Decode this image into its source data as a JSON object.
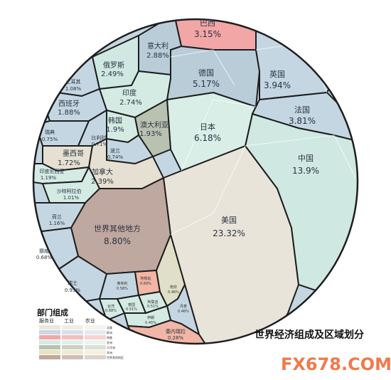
{
  "chart_data": {
    "type": "voronoi-treemap",
    "title": "世界经济组成及区域划分",
    "regions": [
      {
        "name": "美国",
        "value": "23.32%",
        "share": 23.32,
        "color": "#e9e4da"
      },
      {
        "name": "中国",
        "value": "13.9%",
        "share": 13.9,
        "color": "#cfe8e2"
      },
      {
        "name": "世界其他地方",
        "value": "8.80%",
        "share": 8.8,
        "color": "#bfa8a0"
      },
      {
        "name": "日本",
        "value": "6.18%",
        "share": 6.18,
        "color": "#d8eee7"
      },
      {
        "name": "德国",
        "value": "5.17%",
        "share": 5.17,
        "color": "#b9cdd9"
      },
      {
        "name": "英国",
        "value": "3.94%",
        "share": 3.94,
        "color": "#c4d6e2"
      },
      {
        "name": "法国",
        "value": "3.81%",
        "share": 3.81,
        "color": "#c4d6e2"
      },
      {
        "name": "巴西",
        "value": "3.15%",
        "share": 3.15,
        "color": "#f2a6a6"
      },
      {
        "name": "意大利",
        "value": "2.88%",
        "share": 2.88,
        "color": "#b9cdd9"
      },
      {
        "name": "印度",
        "value": "2.74%",
        "share": 2.74,
        "color": "#d4ebe4"
      },
      {
        "name": "俄罗斯",
        "value": "2.49%",
        "share": 2.49,
        "color": "#cfe8e2"
      },
      {
        "name": "加拿大",
        "value": "2.39%",
        "share": 2.39,
        "color": "#e6e0d2"
      },
      {
        "name": "澳大利亚",
        "value": "1.93%",
        "share": 1.93,
        "color": "#b9c2b0"
      },
      {
        "name": "韩国",
        "value": "1.9%",
        "share": 1.9,
        "color": "#d4ebe4"
      },
      {
        "name": "西班牙",
        "value": "1.88%",
        "share": 1.88,
        "color": "#c4d6e2"
      },
      {
        "name": "墨西哥",
        "value": "1.72%",
        "share": 1.72,
        "color": "#e6e0d2"
      },
      {
        "name": "印度尼西亚",
        "value": "1.19%",
        "share": 1.19,
        "color": "#d4ebe4"
      },
      {
        "name": "荷兰",
        "value": "1.16%",
        "share": 1.16,
        "color": "#c4d6e2"
      },
      {
        "name": "土耳其",
        "value": "1.08%",
        "share": 1.08,
        "color": "#c4d6e2"
      },
      {
        "name": "沙特阿拉伯",
        "value": "1.01%",
        "share": 1.01,
        "color": "#d4ebe4"
      },
      {
        "name": "瑞士",
        "value": "0.95%",
        "share": 0.95,
        "color": "#c4d6e2"
      },
      {
        "name": "瑞典",
        "value": "0.75%",
        "share": 0.75,
        "color": "#c4d6e2"
      },
      {
        "name": "波兰",
        "value": "0.74%",
        "share": 0.74,
        "color": "#c4d6e2"
      },
      {
        "name": "比利时",
        "value": "0.71%",
        "share": 0.71,
        "color": "#c4d6e2"
      },
      {
        "name": "挪威",
        "value": "0.68%",
        "share": 0.68,
        "color": "#c4d6e2"
      },
      {
        "name": "阿根廷",
        "value": "0.60%",
        "share": 0.6,
        "color": "#f2b6a6"
      },
      {
        "name": "奥地利",
        "value": "0.58%",
        "share": 0.58,
        "color": "#c4d6e2"
      },
      {
        "name": "泰国",
        "value": "0.51%",
        "share": 0.51,
        "color": "#d4ebe4"
      },
      {
        "name": "阿联酋",
        "value": "0.51%",
        "share": 0.51,
        "color": "#d4ebe4"
      },
      {
        "name": "南非",
        "value": "0.46%",
        "share": 0.46,
        "color": "#e0e0c8"
      },
      {
        "name": "丹麦",
        "value": "0.46%",
        "share": 0.46,
        "color": "#c4d6e2"
      },
      {
        "name": "伊朗",
        "value": "0.45%",
        "share": 0.45,
        "color": "#d4ebe4"
      },
      {
        "name": "委内瑞拉",
        "value": "0.28%",
        "share": 0.28,
        "color": "#f2b6a6"
      },
      {
        "name": "台湾",
        "value": "0.68%",
        "share": 0.68,
        "color": "#d4ebe4"
      }
    ],
    "legend": {
      "title": "部门组成",
      "headers": [
        "服务业",
        "工业",
        "农业"
      ],
      "regions": [
        "北美",
        "欧洲",
        "南美",
        "亚洲",
        "大洋洲",
        "非洲",
        "世界其他地区"
      ],
      "colors": [
        "#ece7dc",
        "#c8d8e4",
        "#f2a6a6",
        "#d4ebe4",
        "#b9c2b0",
        "#e8e2c0",
        "#bfa8a0"
      ]
    }
  },
  "watermark": "FX678.COM"
}
